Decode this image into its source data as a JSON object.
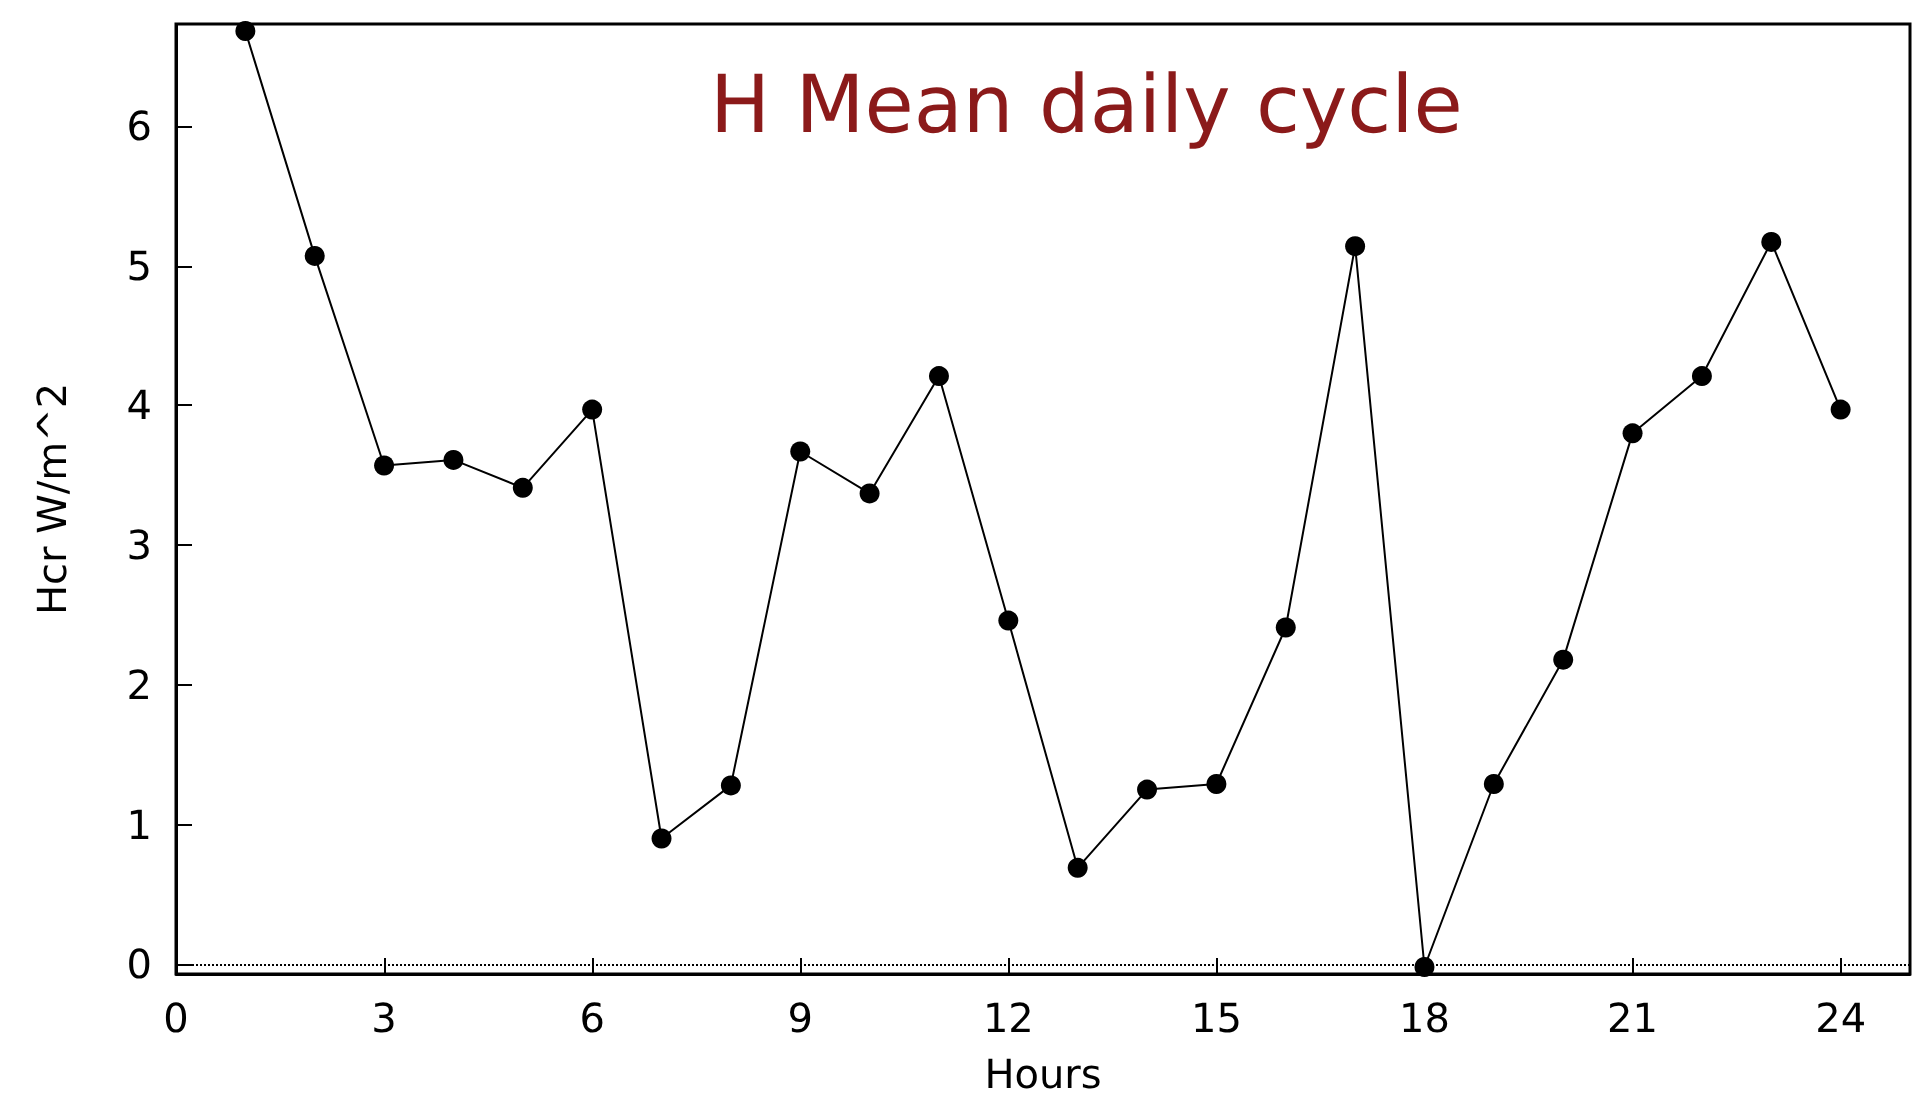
{
  "chart_data": {
    "type": "line",
    "title": "H Mean daily cycle",
    "xlabel": "Hours",
    "ylabel": "Hcr W/m^2",
    "x": [
      1,
      2,
      3,
      4,
      5,
      6,
      7,
      8,
      9,
      10,
      11,
      12,
      13,
      14,
      15,
      16,
      17,
      18,
      19,
      20,
      21,
      22,
      23,
      24
    ],
    "series": [
      {
        "color": "#000000",
        "values": [
          6.68,
          5.07,
          3.57,
          3.61,
          3.41,
          3.97,
          0.9,
          1.28,
          3.67,
          3.37,
          4.21,
          2.46,
          0.69,
          1.25,
          1.29,
          2.41,
          5.14,
          -0.02,
          1.29,
          2.18,
          3.8,
          4.21,
          5.17,
          3.97
        ]
      }
    ],
    "xlim": [
      0,
      25
    ],
    "xticks": [
      0,
      3,
      6,
      9,
      12,
      15,
      18,
      21,
      24
    ],
    "ylim": [
      -0.07,
      6.73
    ],
    "yticks": [
      0,
      1,
      2,
      3,
      4,
      5,
      6
    ],
    "ref_lines": [
      {
        "axis": "y",
        "value": 0,
        "line_style": "dotted",
        "color": "#000000"
      }
    ],
    "marker": "circle",
    "line_style": "solid",
    "grid": false
  }
}
